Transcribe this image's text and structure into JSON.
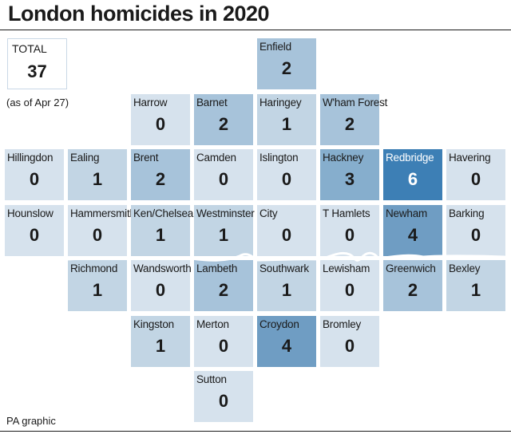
{
  "title": "London homicides in 2020",
  "total": {
    "label": "TOTAL",
    "value": "37"
  },
  "as_of": "(as of Apr 27)",
  "source": "PA graphic",
  "colors": {
    "level_0": "#d6e2ed",
    "level_1": "#c2d5e4",
    "level_2": "#a7c3da",
    "level_3": "#86aecd",
    "level_4": "#6f9dc3",
    "level_6": "#3d7fb5"
  },
  "chart_data": {
    "type": "table",
    "title": "London homicides in 2020",
    "boroughs": [
      {
        "name": "Enfield",
        "value": 2,
        "row": 0,
        "col": 4
      },
      {
        "name": "Harrow",
        "value": 0,
        "row": 1,
        "col": 2
      },
      {
        "name": "Barnet",
        "value": 2,
        "row": 1,
        "col": 3
      },
      {
        "name": "Haringey",
        "value": 1,
        "row": 1,
        "col": 4
      },
      {
        "name": "W'ham Forest",
        "value": 2,
        "row": 1,
        "col": 5
      },
      {
        "name": "Hillingdon",
        "value": 0,
        "row": 2,
        "col": 0
      },
      {
        "name": "Ealing",
        "value": 1,
        "row": 2,
        "col": 1
      },
      {
        "name": "Brent",
        "value": 2,
        "row": 2,
        "col": 2
      },
      {
        "name": "Camden",
        "value": 0,
        "row": 2,
        "col": 3
      },
      {
        "name": "Islington",
        "value": 0,
        "row": 2,
        "col": 4
      },
      {
        "name": "Hackney",
        "value": 3,
        "row": 2,
        "col": 5
      },
      {
        "name": "Redbridge",
        "value": 6,
        "row": 2,
        "col": 6
      },
      {
        "name": "Havering",
        "value": 0,
        "row": 2,
        "col": 7
      },
      {
        "name": "Hounslow",
        "value": 0,
        "row": 3,
        "col": 0
      },
      {
        "name": "Hammersmith",
        "value": 0,
        "row": 3,
        "col": 1
      },
      {
        "name": "Ken/Chelsea",
        "value": 1,
        "row": 3,
        "col": 2
      },
      {
        "name": "Westminster",
        "value": 1,
        "row": 3,
        "col": 3
      },
      {
        "name": "City",
        "value": 0,
        "row": 3,
        "col": 4
      },
      {
        "name": "T Hamlets",
        "value": 0,
        "row": 3,
        "col": 5
      },
      {
        "name": "Newham",
        "value": 4,
        "row": 3,
        "col": 6
      },
      {
        "name": "Barking",
        "value": 0,
        "row": 3,
        "col": 7
      },
      {
        "name": "Richmond",
        "value": 1,
        "row": 4,
        "col": 1
      },
      {
        "name": "Wandsworth",
        "value": 0,
        "row": 4,
        "col": 2
      },
      {
        "name": "Lambeth",
        "value": 2,
        "row": 4,
        "col": 3
      },
      {
        "name": "Southwark",
        "value": 1,
        "row": 4,
        "col": 4
      },
      {
        "name": "Lewisham",
        "value": 0,
        "row": 4,
        "col": 5
      },
      {
        "name": "Greenwich",
        "value": 2,
        "row": 4,
        "col": 6
      },
      {
        "name": "Bexley",
        "value": 1,
        "row": 4,
        "col": 7
      },
      {
        "name": "Kingston",
        "value": 1,
        "row": 5,
        "col": 2
      },
      {
        "name": "Merton",
        "value": 0,
        "row": 5,
        "col": 3
      },
      {
        "name": "Croydon",
        "value": 4,
        "row": 5,
        "col": 4
      },
      {
        "name": "Bromley",
        "value": 0,
        "row": 5,
        "col": 5
      },
      {
        "name": "Sutton",
        "value": 0,
        "row": 6,
        "col": 3
      }
    ]
  }
}
